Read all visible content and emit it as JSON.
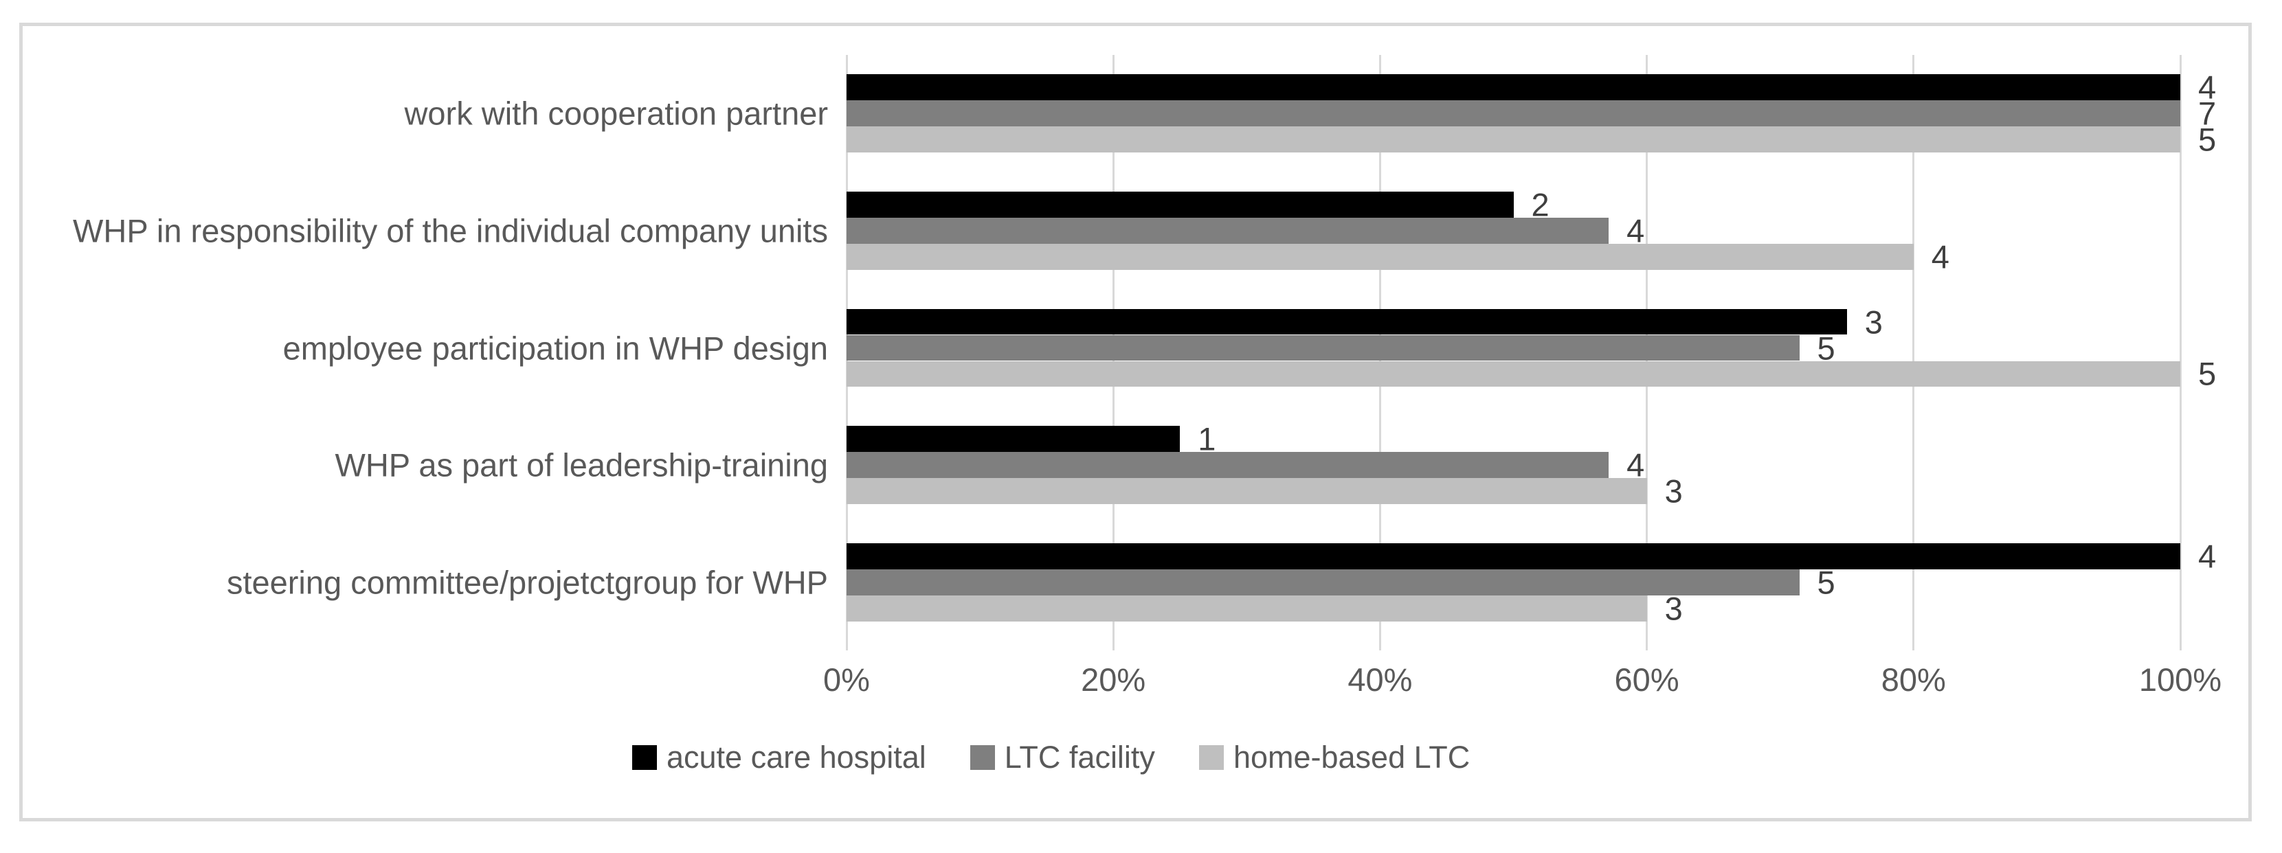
{
  "figure": {
    "background": "#ffffff",
    "border_color": "#d9d9d9"
  },
  "chart_data": {
    "type": "bar",
    "orientation": "horizontal",
    "title": "",
    "xlabel": "",
    "ylabel": "",
    "categories": [
      "work with cooperation partner",
      "WHP in responsibility of the individual company units",
      "employee participation in WHP design",
      "WHP as part of leadership-training",
      "steering committee/projetctgroup for WHP"
    ],
    "series": [
      {
        "name": "acute care hospital",
        "color": "#000000",
        "values": [
          4,
          2,
          3,
          1,
          4
        ],
        "percent": [
          100,
          50,
          75,
          25,
          100
        ]
      },
      {
        "name": "LTC facility",
        "color": "#7f7f7f",
        "values": [
          7,
          4,
          5,
          4,
          5
        ],
        "percent": [
          100,
          57.14,
          71.43,
          57.14,
          71.43
        ]
      },
      {
        "name": "home-based LTC",
        "color": "#bfbfbf",
        "values": [
          5,
          4,
          5,
          3,
          3
        ],
        "percent": [
          100,
          80,
          100,
          60,
          60
        ]
      }
    ],
    "x_axis": {
      "min": 0,
      "max": 100,
      "tick_labels": [
        "0%",
        "20%",
        "40%",
        "60%",
        "80%",
        "100%"
      ]
    },
    "grid": true,
    "gridline_color": "#d9d9d9",
    "axis_label_color": "#595959",
    "data_label_color": "#3f3f3f",
    "legend_position": "bottom",
    "data_labels_visible": true
  }
}
